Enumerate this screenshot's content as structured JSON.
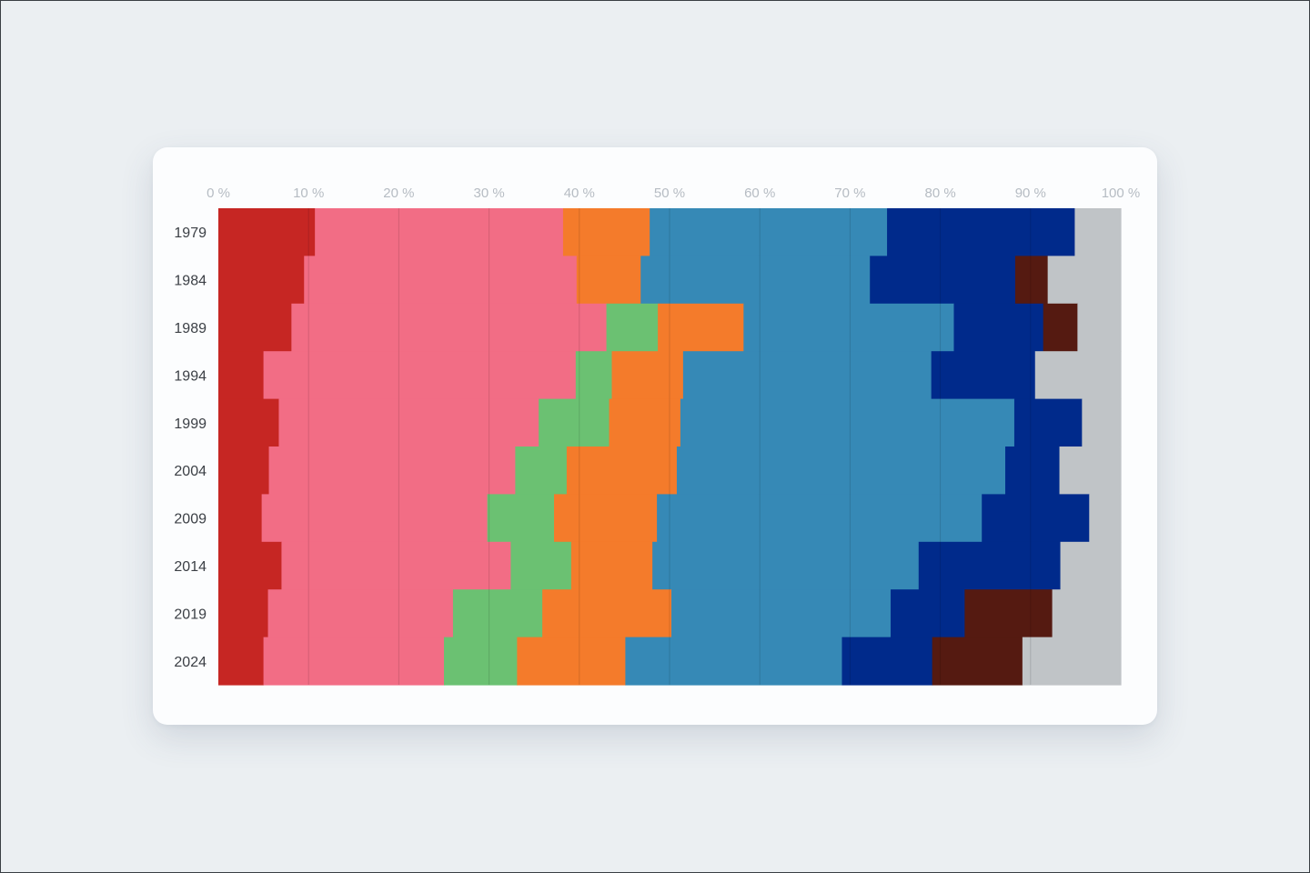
{
  "chart_data": {
    "type": "bar",
    "orientation": "horizontal",
    "stacked": true,
    "categories": [
      "1979",
      "1984",
      "1989",
      "1994",
      "1999",
      "2004",
      "2009",
      "2014",
      "2019",
      "2024"
    ],
    "x_ticks": [
      "0 %",
      "10 %",
      "20 %",
      "30 %",
      "40 %",
      "50 %",
      "60 %",
      "70 %",
      "80 %",
      "90 %",
      "100 %"
    ],
    "xlim": [
      0,
      100
    ],
    "grid": true,
    "grid_axis": "x",
    "legend": "none",
    "title": "",
    "xlabel": "",
    "ylabel": "",
    "series": [
      {
        "color": "#c62623",
        "values": [
          10.7,
          9.5,
          8.1,
          5.0,
          6.7,
          5.6,
          4.8,
          7.0,
          5.5,
          5.0
        ]
      },
      {
        "color": "#f26d85",
        "values": [
          27.5,
          30.2,
          34.9,
          34.6,
          28.8,
          27.3,
          25.0,
          25.4,
          20.5,
          20.0
        ]
      },
      {
        "color": "#6bc172",
        "values": [
          0,
          0,
          5.7,
          4.0,
          7.8,
          5.7,
          7.4,
          6.7,
          9.9,
          8.1
        ]
      },
      {
        "color": "#f47b2b",
        "values": [
          9.6,
          7.1,
          9.5,
          7.9,
          7.9,
          12.2,
          11.4,
          9.0,
          14.3,
          12.0
        ]
      },
      {
        "color": "#3689b6",
        "values": [
          26.3,
          25.4,
          23.3,
          27.5,
          37.0,
          36.4,
          36.0,
          29.5,
          24.3,
          24.0
        ]
      },
      {
        "color": "#002a8b",
        "values": [
          20.8,
          16.1,
          9.9,
          11.5,
          7.5,
          6.0,
          11.9,
          15.7,
          8.2,
          10.0
        ]
      },
      {
        "color": "#551a11",
        "values": [
          0,
          3.6,
          3.8,
          0,
          0,
          0,
          0,
          0,
          9.7,
          10.0
        ]
      },
      {
        "color": "#c0c4c7",
        "values": [
          5.1,
          8.1,
          4.8,
          9.5,
          4.3,
          6.8,
          3.5,
          6.7,
          7.6,
          10.9
        ]
      }
    ]
  }
}
